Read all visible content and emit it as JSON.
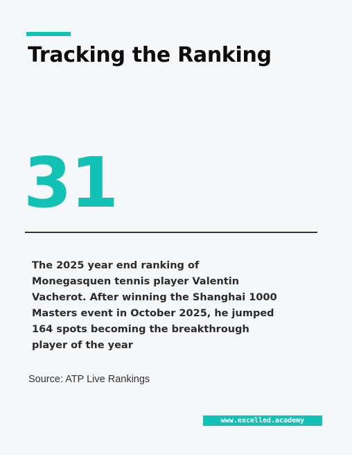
{
  "header": {
    "title": "Tracking the Ranking"
  },
  "stat": {
    "value": "31"
  },
  "description": "The 2025 year end ranking of Monegasquen tennis player Valentin Vacherot. After winning the Shanghai 1000 Masters event in October 2025, he jumped 164 spots becoming the breakthrough player of the year",
  "source": "Source: ATP Live Rankings",
  "footer": {
    "url": "www.excelled.academy"
  },
  "colors": {
    "accent": "#12c2b4",
    "background": "#f5f7f9",
    "text": "#0d0d0d"
  }
}
